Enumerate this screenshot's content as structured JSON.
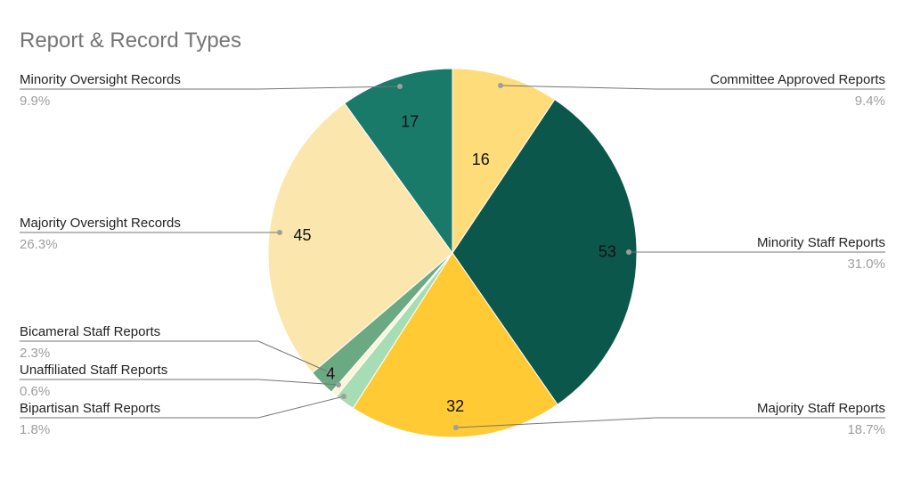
{
  "chart_data": {
    "type": "pie",
    "title": "Report & Record Types",
    "slices": [
      {
        "name": "Committee Approved Reports",
        "value": 16,
        "percent": "9.4%",
        "color": "#fedc79"
      },
      {
        "name": "Minority Staff Reports",
        "value": 53,
        "percent": "31.0%",
        "color": "#0c574b"
      },
      {
        "name": "Majority Staff Reports",
        "value": 32,
        "percent": "18.7%",
        "color": "#ffca33"
      },
      {
        "name": "Bipartisan Staff Reports",
        "value": 3,
        "percent": "1.8%",
        "color": "#a6ddb5"
      },
      {
        "name": "Unaffiliated Staff Reports",
        "value": 1,
        "percent": "0.6%",
        "color": "#fdf3d8"
      },
      {
        "name": "Bicameral Staff Reports",
        "value": 4,
        "percent": "2.3%",
        "color": "#6ba983"
      },
      {
        "name": "Majority Oversight Records",
        "value": 45,
        "percent": "26.3%",
        "color": "#fbe6ad"
      },
      {
        "name": "Minority Oversight Records",
        "value": 17,
        "percent": "9.9%",
        "color": "#1a7a6a"
      }
    ],
    "value_labels_shown": [
      "16",
      "53",
      "32",
      "4",
      "45",
      "17"
    ],
    "legend": "none"
  }
}
